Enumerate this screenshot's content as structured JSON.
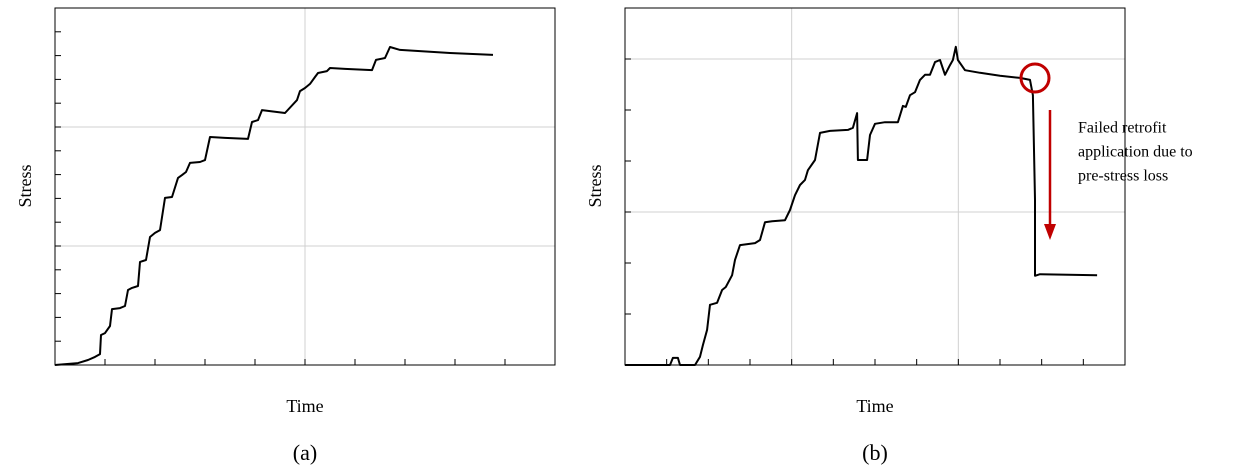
{
  "chart_data": [
    {
      "type": "line",
      "panel_label": "(a)",
      "xlabel": "Time",
      "ylabel": "Stress",
      "color": "#000000",
      "xlim": [
        0,
        10
      ],
      "xticks": [
        0,
        1,
        2,
        3,
        4,
        5,
        6,
        7,
        8,
        9,
        10
      ],
      "ylim": [
        0,
        15
      ],
      "yticks": [
        0,
        1,
        2,
        3,
        4,
        5,
        6,
        7,
        8,
        9,
        10,
        11,
        12,
        13,
        14,
        15
      ],
      "grid": true,
      "xgrid_every": 5,
      "ygrid_every": 5,
      "x": [
        0,
        0.46,
        0.66,
        0.8,
        0.9,
        0.92,
        1.0,
        1.1,
        1.14,
        1.3,
        1.4,
        1.46,
        1.54,
        1.66,
        1.7,
        1.82,
        1.9,
        2.0,
        2.1,
        2.2,
        2.34,
        2.46,
        2.54,
        2.62,
        2.7,
        2.9,
        3.0,
        3.1,
        3.4,
        3.86,
        3.94,
        4.06,
        4.14,
        4.3,
        4.6,
        4.84,
        4.9,
        5.0,
        5.1,
        5.2,
        5.26,
        5.44,
        5.5,
        5.8,
        6.34,
        6.42,
        6.6,
        6.7,
        6.9,
        7.9,
        8.76
      ],
      "values": [
        0,
        0.08,
        0.21,
        0.34,
        0.46,
        1.26,
        1.34,
        1.64,
        2.35,
        2.39,
        2.48,
        3.15,
        3.24,
        3.32,
        4.33,
        4.41,
        5.38,
        5.55,
        5.67,
        7.02,
        7.06,
        7.86,
        7.98,
        8.11,
        8.49,
        8.53,
        8.61,
        9.58,
        9.54,
        9.5,
        10.21,
        10.29,
        10.71,
        10.67,
        10.59,
        11.13,
        11.51,
        11.64,
        11.81,
        12.1,
        12.27,
        12.35,
        12.48,
        12.44,
        12.39,
        12.82,
        12.9,
        13.36,
        13.24,
        13.11,
        13.03
      ]
    },
    {
      "type": "line",
      "panel_label": "(b)",
      "xlabel": "Time",
      "ylabel": "Stress",
      "color": "#000000",
      "xlim": [
        0,
        12
      ],
      "xticks": [
        0,
        1,
        2,
        3,
        4,
        5,
        6,
        7,
        8,
        9,
        10,
        11,
        12
      ],
      "ylim": [
        0,
        7
      ],
      "yticks": [
        0,
        1,
        2,
        3,
        4,
        5,
        6,
        7
      ],
      "grid": true,
      "xgrid_every": 4,
      "ygrid_every": 3,
      "x": [
        0,
        1.08,
        1.15,
        1.27,
        1.32,
        1.68,
        1.8,
        1.87,
        1.97,
        2.04,
        2.21,
        2.33,
        2.42,
        2.57,
        2.64,
        2.76,
        3.12,
        3.24,
        3.36,
        3.53,
        3.84,
        3.96,
        4.08,
        4.2,
        4.32,
        4.39,
        4.56,
        4.68,
        4.92,
        5.35,
        5.47,
        5.57,
        5.59,
        5.81,
        5.88,
        6.0,
        6.24,
        6.55,
        6.67,
        6.74,
        6.84,
        6.96,
        7.08,
        7.2,
        7.32,
        7.44,
        7.56,
        7.68,
        7.8,
        7.87,
        7.94,
        7.99,
        8.16,
        8.52,
        9.0,
        9.48,
        9.72,
        9.79,
        9.84,
        9.84,
        9.96,
        11.33
      ],
      "values": [
        0,
        0,
        0.14,
        0.14,
        0,
        0,
        0.16,
        0.39,
        0.69,
        1.18,
        1.22,
        1.47,
        1.53,
        1.76,
        2.06,
        2.35,
        2.39,
        2.45,
        2.8,
        2.82,
        2.84,
        3.04,
        3.33,
        3.53,
        3.63,
        3.82,
        4.02,
        4.55,
        4.59,
        4.61,
        4.65,
        4.94,
        4.02,
        4.02,
        4.51,
        4.73,
        4.76,
        4.76,
        5.08,
        5.06,
        5.29,
        5.35,
        5.59,
        5.69,
        5.69,
        5.94,
        5.98,
        5.69,
        5.88,
        5.98,
        6.24,
        5.98,
        5.78,
        5.73,
        5.67,
        5.63,
        5.59,
        5.29,
        3.24,
        1.75,
        1.78,
        1.76
      ],
      "annotation": [
        "Failed retrofit",
        "application due to",
        "pre-stress loss"
      ],
      "annotation_color": "#c00000"
    }
  ]
}
